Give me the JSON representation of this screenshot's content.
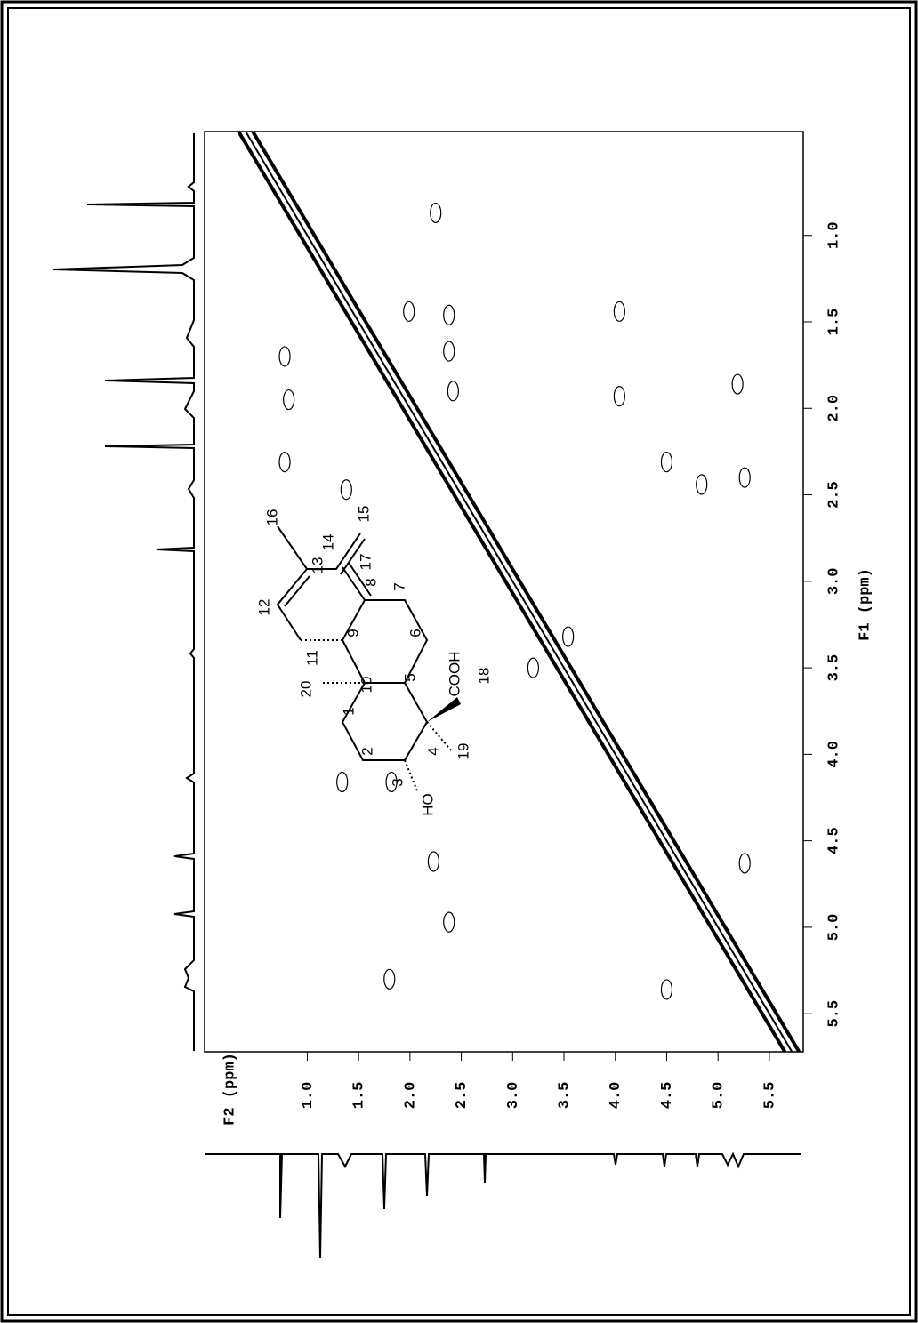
{
  "chart_data": {
    "type": "cosy",
    "xlabel": "F1 (ppm)",
    "ylabel": "F2 (ppm)",
    "xlim": [
      0.4,
      5.72
    ],
    "xticks": [
      {
        "value": 1.0,
        "label": "1.0"
      },
      {
        "value": 1.5,
        "label": "1.5"
      },
      {
        "value": 2.0,
        "label": "2.0"
      },
      {
        "value": 2.5,
        "label": "2.5"
      },
      {
        "value": 3.0,
        "label": "3.0"
      },
      {
        "value": 3.5,
        "label": "3.5"
      },
      {
        "value": 4.0,
        "label": "4.0"
      },
      {
        "value": 4.5,
        "label": "4.5"
      },
      {
        "value": 5.0,
        "label": "5.0"
      },
      {
        "value": 5.5,
        "label": "5.5"
      }
    ],
    "ylim": [
      0.0,
      5.83
    ],
    "yticks": [
      {
        "value": 1.0,
        "label": "1.0"
      },
      {
        "value": 1.5,
        "label": "1.5"
      },
      {
        "value": 2.0,
        "label": "2.0"
      },
      {
        "value": 2.5,
        "label": "2.5"
      },
      {
        "value": 3.0,
        "label": "3.0"
      },
      {
        "value": 3.5,
        "label": "3.5"
      },
      {
        "value": 4.0,
        "label": "4.0"
      },
      {
        "value": 4.5,
        "label": "4.5"
      },
      {
        "value": 5.0,
        "label": "5.0"
      },
      {
        "value": 5.5,
        "label": "5.5"
      }
    ],
    "color": "#000000",
    "cross_peaks": {
      "f1": [
        1.44,
        1.93,
        1.86,
        2.31,
        2.44,
        2.4,
        4.63,
        5.36,
        3.5,
        3.32,
        4.97,
        4.62,
        5.3,
        4.16,
        4.16,
        1.46,
        1.67,
        1.9,
        1.7,
        2.31,
        0.87,
        1.44,
        2.47,
        1.95
      ],
      "f2": [
        4.04,
        4.04,
        5.19,
        4.5,
        4.84,
        5.26,
        5.26,
        4.5,
        3.2,
        3.54,
        2.38,
        2.23,
        1.8,
        1.34,
        1.82,
        2.38,
        2.38,
        2.42,
        0.78,
        0.78,
        2.25,
        1.99,
        1.38,
        0.82
      ]
    }
  },
  "structure": {
    "atoms": [
      "1",
      "2",
      "3",
      "4",
      "5",
      "6",
      "7",
      "8",
      "9",
      "10",
      "11",
      "12",
      "13",
      "14",
      "15",
      "16",
      "17",
      "18",
      "19",
      "20"
    ],
    "acid": "COOH",
    "hydroxyl": "HO"
  }
}
